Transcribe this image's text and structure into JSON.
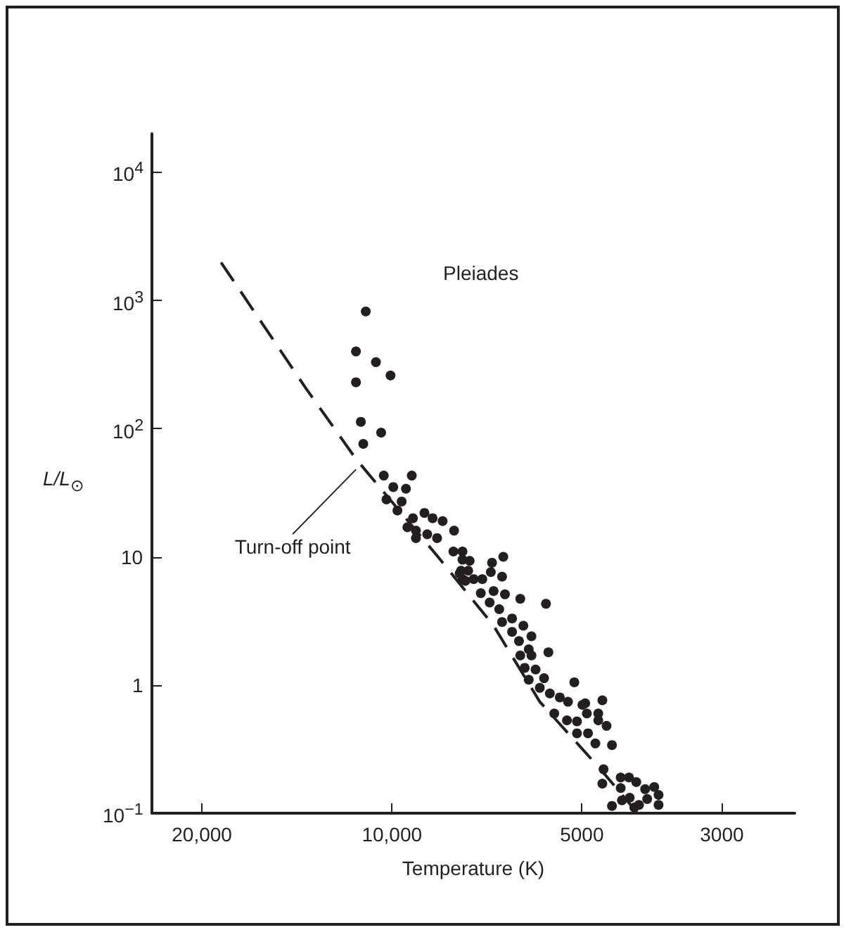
{
  "chart_data": {
    "type": "scatter",
    "title": "Pleiades",
    "xlabel": "Temperature (K)",
    "ylabel": "L/L$_{⊙}$",
    "log": "xy",
    "marker": "circle",
    "xlim": [
      24000,
      2300
    ],
    "xticks": [
      {
        "value": 20000,
        "label": "20,000"
      },
      {
        "value": 10000,
        "label": "10,000"
      },
      5000,
      3000
    ],
    "ylim": [
      0.1,
      20000
    ],
    "yticks": [
      {
        "value": 0.1,
        "label": "10$^{−1}$"
      },
      1,
      10,
      {
        "value": 100,
        "label": "10$^{2}$"
      },
      {
        "value": 1000,
        "label": "10$^{3}$"
      },
      {
        "value": 10000,
        "label": "10$^{4}$"
      }
    ],
    "annotations": [
      {
        "text": "Turn-off point",
        "x": 11400,
        "y": 48
      }
    ],
    "series": [
      {
        "color": "#231f20",
        "x": [
          11000,
          11400,
          10600,
          10050,
          11400,
          11200,
          10400,
          11100,
          10300,
          9300,
          9950,
          9500,
          10200,
          9650,
          9800,
          9260,
          8880,
          8620,
          8310,
          9160,
          8790,
          8480,
          7970,
          7990,
          7730,
          7730,
          7530,
          7770,
          7570,
          7730,
          9450,
          9160,
          6940,
          6660,
          7810,
          7420,
          7190,
          6970,
          6690,
          7650,
          7230,
          6900,
          6620,
          6260,
          5700,
          7000,
          6760,
          6690,
          6450,
          6190,
          6450,
          6010,
          6290,
          6070,
          6260,
          6010,
          5650,
          6160,
          5920,
          6070,
          5740,
          5830,
          5140,
          5620,
          5420,
          5260,
          4940,
          4640,
          4990,
          5530,
          5280,
          5090,
          4910,
          4710,
          4710,
          4570,
          5090,
          4890,
          4760,
          4480,
          4620,
          4640,
          4340,
          4210,
          4100,
          4340,
          3970,
          3840,
          3780,
          3940,
          3780,
          4320,
          4200,
          4480,
          4130,
          4060
        ],
        "values": [
          820,
          400,
          330,
          260,
          230,
          113,
          93,
          76,
          43,
          43,
          35,
          34,
          28,
          27,
          23,
          20,
          22,
          20,
          19,
          16,
          15,
          14,
          16,
          11,
          11,
          9.5,
          9.3,
          7.8,
          7.8,
          6.7,
          17,
          14,
          9,
          10,
          7.4,
          6.7,
          6.7,
          7.6,
          7,
          6.5,
          5.2,
          5.4,
          5.1,
          4.7,
          4.3,
          4.4,
          3.9,
          3.1,
          3.3,
          2.9,
          2.6,
          2.4,
          2.2,
          1.9,
          1.7,
          1.7,
          1.8,
          1.36,
          1.32,
          1.1,
          1.13,
          0.95,
          1.05,
          0.86,
          0.8,
          0.74,
          0.72,
          0.76,
          0.7,
          0.6,
          0.53,
          0.52,
          0.6,
          0.6,
          0.53,
          0.48,
          0.42,
          0.42,
          0.35,
          0.34,
          0.22,
          0.17,
          0.19,
          0.19,
          0.175,
          0.157,
          0.154,
          0.16,
          0.139,
          0.129,
          0.116,
          0.126,
          0.132,
          0.114,
          0.111,
          0.116
        ]
      },
      {
        "type": "line",
        "color": "#231f20",
        "line_style": "dashed",
        "marker": "none",
        "x": [
          18650,
          13700,
          11400,
          8480,
          6900,
          5830,
          4690,
          4080
        ],
        "values": [
          1980,
          208,
          58,
          10.2,
          2.9,
          0.74,
          0.225,
          0.1
        ]
      }
    ]
  }
}
